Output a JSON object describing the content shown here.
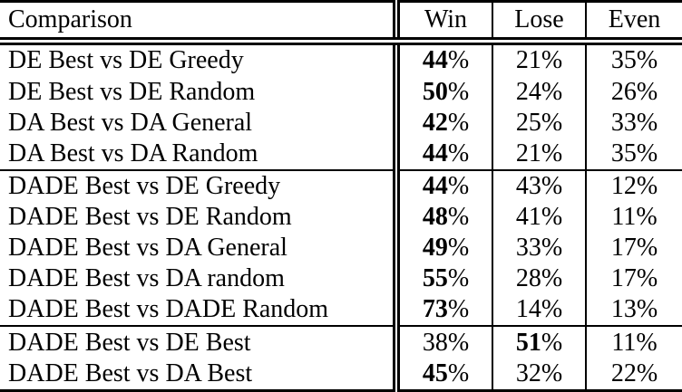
{
  "colors": {
    "text": "#000000",
    "border": "#000000",
    "background": "#ffffff"
  },
  "table": {
    "columns": [
      "Comparison",
      "Win",
      "Lose",
      "Even"
    ],
    "value_keys": [
      "win",
      "lose",
      "even"
    ],
    "groups": [
      [
        {
          "comparison": "DE Best vs DE Greedy",
          "win": "44%",
          "lose": "21%",
          "even": "35%",
          "bold": "win"
        },
        {
          "comparison": "DE Best vs DE Random",
          "win": "50%",
          "lose": "24%",
          "even": "26%",
          "bold": "win"
        },
        {
          "comparison": "DA Best vs DA General",
          "win": "42%",
          "lose": "25%",
          "even": "33%",
          "bold": "win"
        },
        {
          "comparison": "DA Best vs DA Random",
          "win": "44%",
          "lose": "21%",
          "even": "35%",
          "bold": "win"
        }
      ],
      [
        {
          "comparison": "DADE Best vs DE Greedy",
          "win": "44%",
          "lose": "43%",
          "even": "12%",
          "bold": "win"
        },
        {
          "comparison": "DADE Best vs DE Random",
          "win": "48%",
          "lose": "41%",
          "even": "11%",
          "bold": "win"
        },
        {
          "comparison": "DADE Best vs DA General",
          "win": "49%",
          "lose": "33%",
          "even": "17%",
          "bold": "win"
        },
        {
          "comparison": "DADE Best vs DA random",
          "win": "55%",
          "lose": "28%",
          "even": "17%",
          "bold": "win"
        },
        {
          "comparison": "DADE Best vs DADE Random",
          "win": "73%",
          "lose": "14%",
          "even": "13%",
          "bold": "win"
        }
      ],
      [
        {
          "comparison": "DADE Best vs DE Best",
          "win": "38%",
          "lose": "51%",
          "even": "11%",
          "bold": "lose"
        },
        {
          "comparison": "DADE Best vs DA Best",
          "win": "45%",
          "lose": "32%",
          "even": "22%",
          "bold": "win"
        }
      ]
    ]
  }
}
